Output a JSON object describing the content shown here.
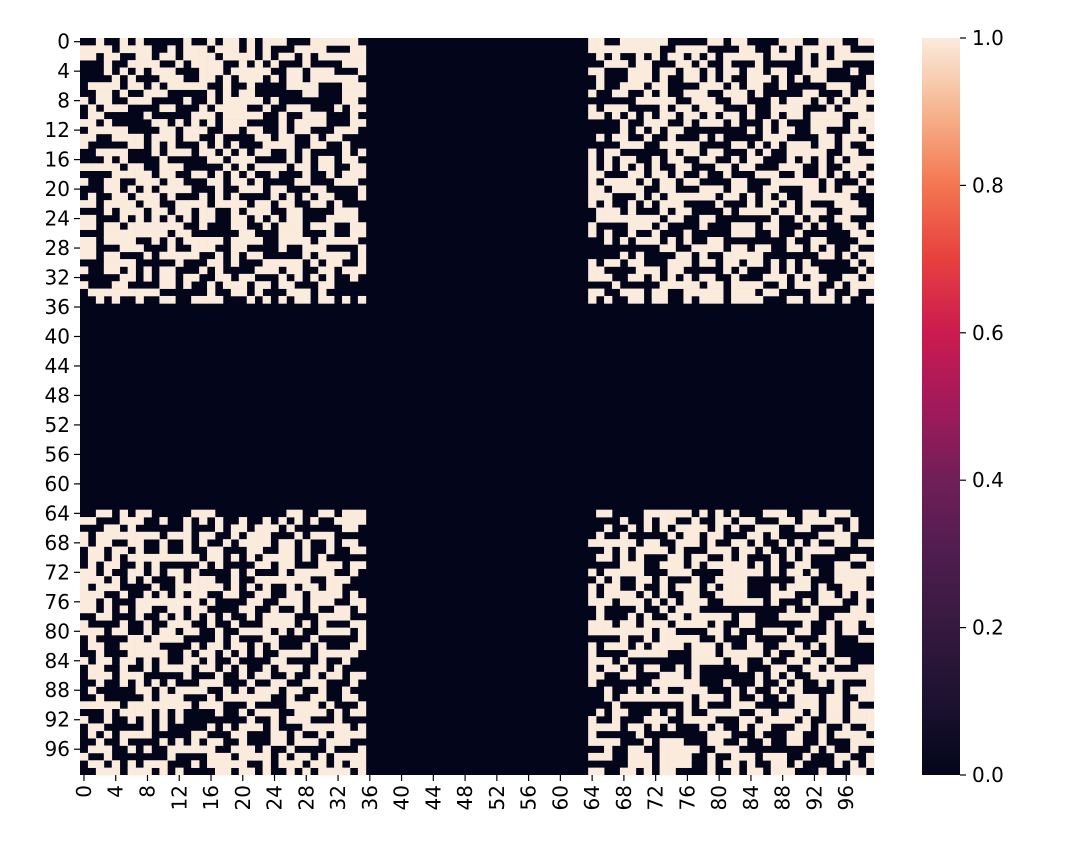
{
  "chart_data": {
    "type": "heatmap",
    "title": "",
    "xlabel": "",
    "ylabel": "",
    "rows": 100,
    "cols": 100,
    "value_range": [
      0,
      1
    ],
    "colormap": "rocket",
    "description_of_pattern": "",
    "zero_bands": {
      "rows": [
        36,
        63
      ],
      "cols": [
        36,
        63
      ]
    },
    "random_binary_quadrants": [
      {
        "rows": [
          0,
          35
        ],
        "cols": [
          0,
          35
        ]
      },
      {
        "rows": [
          0,
          35
        ],
        "cols": [
          64,
          99
        ]
      },
      {
        "rows": [
          64,
          99
        ],
        "cols": [
          0,
          35
        ]
      },
      {
        "rows": [
          64,
          99
        ],
        "cols": [
          64,
          99
        ]
      }
    ],
    "x_tick_labels": [
      "0",
      "4",
      "8",
      "12",
      "16",
      "20",
      "24",
      "28",
      "32",
      "36",
      "40",
      "44",
      "48",
      "52",
      "56",
      "60",
      "64",
      "68",
      "72",
      "76",
      "80",
      "84",
      "88",
      "92",
      "96"
    ],
    "y_tick_labels": [
      "0",
      "4",
      "8",
      "12",
      "16",
      "20",
      "24",
      "28",
      "32",
      "36",
      "40",
      "44",
      "48",
      "52",
      "56",
      "60",
      "64",
      "68",
      "72",
      "76",
      "80",
      "84",
      "88",
      "92",
      "96"
    ],
    "colorbar": {
      "ticks": [
        0.0,
        0.2,
        0.4,
        0.6,
        0.8,
        1.0
      ],
      "tick_labels": [
        "0.0",
        "0.2",
        "0.4",
        "0.6",
        "0.8",
        "1.0"
      ],
      "low_color": "#03051a",
      "high_color": "#faebdd"
    },
    "grid": false,
    "legend": "colorbar-right"
  }
}
